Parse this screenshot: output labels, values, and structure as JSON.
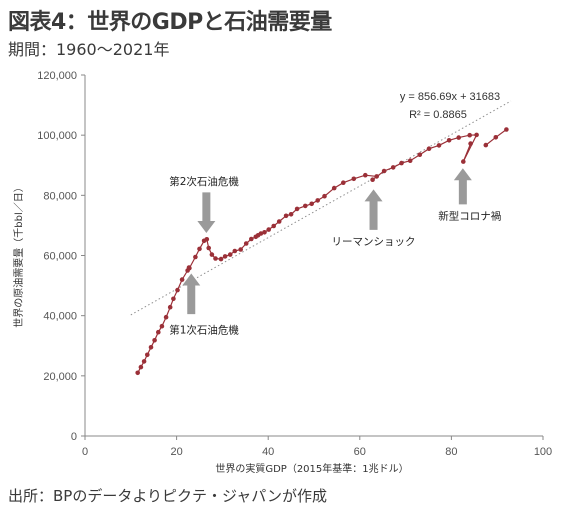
{
  "header": {
    "title": "図表4：世界のGDPと石油需要量",
    "subtitle": "期間：1960～2021年"
  },
  "footer": {
    "source": "出所：BPのデータよりピクテ・ジャパンが作成"
  },
  "colors": {
    "series": "#9b3038",
    "trendline": "#8f8f8f",
    "arrow": "#9a9a9a",
    "axis": "#888888"
  },
  "chart_data": {
    "type": "scatter",
    "title": "",
    "xlabel": "世界の実質GDP（2015年基準：1兆ドル）",
    "ylabel": "世界の原油需要量（千bbl／日）",
    "xlim": [
      0,
      100
    ],
    "ylim": [
      0,
      120000
    ],
    "x_ticks": [
      "0",
      "20",
      "40",
      "60",
      "80",
      "100"
    ],
    "y_ticks": [
      "0",
      "20,000",
      "40,000",
      "60,000",
      "80,000",
      "100,000",
      "120,000"
    ],
    "grid": false,
    "series": [
      {
        "name": "",
        "connected": true,
        "x": [
          11.5,
          12.2,
          12.9,
          13.6,
          14.4,
          15.2,
          16.0,
          16.8,
          17.7,
          18.6,
          19.3,
          20.2,
          21.2,
          22.4,
          22.7,
          22.8,
          24.1,
          25.0,
          26.0,
          26.6,
          27.0,
          27.7,
          28.5,
          29.7,
          30.6,
          31.7,
          32.7,
          34.0,
          35.2,
          36.3,
          37.3,
          37.8,
          38.4,
          39.2,
          40.1,
          41.2,
          42.4,
          43.9,
          45.0,
          46.3,
          48.1,
          49.5,
          50.8,
          52.3,
          54.4,
          56.4,
          58.7,
          61.2,
          63.7,
          62.8,
          65.3,
          67.3,
          69.1,
          71.0,
          73.1,
          75.1,
          77.3,
          79.5,
          81.6,
          84.0,
          85.5,
          82.6,
          84.2
        ],
        "y": [
          21000,
          22900,
          24800,
          27000,
          29500,
          31800,
          34500,
          36500,
          39500,
          42800,
          45600,
          48500,
          52000,
          55000,
          56000,
          55800,
          59500,
          62200,
          64900,
          65400,
          62500,
          60300,
          59000,
          58800,
          59700,
          60300,
          61500,
          62000,
          64000,
          65500,
          66200,
          66700,
          67300,
          67700,
          68600,
          69800,
          71300,
          73200,
          73700,
          75500,
          76500,
          77200,
          78300,
          79700,
          82400,
          84200,
          85500,
          86700,
          86300,
          85200,
          88100,
          89300,
          90700,
          91500,
          93500,
          95500,
          96600,
          98300,
          99200,
          100000,
          100100,
          91200,
          97200
        ]
      },
      {
        "name": "",
        "connected": false,
        "x": [
          87.5,
          89.7,
          92.0
        ],
        "y": [
          96700,
          99300,
          101900
        ]
      }
    ],
    "trendline": {
      "equation": "y = 856.69x + 31683",
      "r2": "R² = 0.8865",
      "slope": 856.69,
      "intercept": 31683,
      "x_range": [
        10,
        93
      ]
    },
    "annotations": [
      {
        "text": "第2次石油危機",
        "arrow_x": 26.5,
        "arrow_from_y": 81000,
        "arrow_to_y": 67500,
        "text_x": 26,
        "text_y": 83500
      },
      {
        "text": "第1次石油危機",
        "arrow_x": 23.2,
        "arrow_from_y": 40500,
        "arrow_to_y": 54000,
        "text_x": 26,
        "text_y": 34000
      },
      {
        "text": "リーマンショック",
        "arrow_x": 63.0,
        "arrow_from_y": 68500,
        "arrow_to_y": 82000,
        "text_x": 63,
        "text_y": 63500
      },
      {
        "text": "新型コロナ禍",
        "arrow_x": 82.5,
        "arrow_from_y": 77000,
        "arrow_to_y": 89000,
        "text_x": 84,
        "text_y": 72000
      }
    ]
  }
}
